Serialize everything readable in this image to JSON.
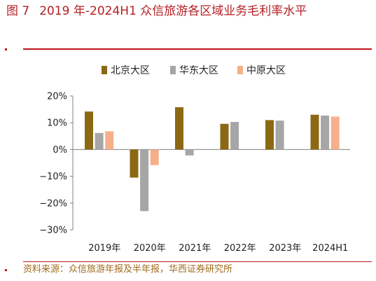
{
  "figure": {
    "number": "图 7",
    "title": "2019 年-2024H1 众信旅游各区域业务毛利率水平"
  },
  "source": "资料来源：众信旅游年报及半年报，华西证券研究所",
  "chart_data": {
    "type": "bar",
    "categories": [
      "2019年",
      "2020年",
      "2021年",
      "2022年",
      "2023年",
      "2024H1"
    ],
    "series": [
      {
        "name": "北京大区",
        "color": "#8b6914",
        "values": [
          14.2,
          -10.5,
          15.8,
          9.6,
          11.0,
          13.0
        ]
      },
      {
        "name": "华东大区",
        "color": "#a6a6a6",
        "values": [
          6.2,
          -23.0,
          -2.2,
          10.3,
          10.8,
          12.7
        ]
      },
      {
        "name": "中原大区",
        "color": "#f5b08a",
        "values": [
          6.8,
          -5.8,
          null,
          null,
          null,
          12.3
        ]
      }
    ],
    "ylim": [
      -30,
      20
    ],
    "yticks": [
      20,
      10,
      0,
      -10,
      -20,
      -30
    ],
    "ytick_labels": [
      "20%",
      "10%",
      "0%",
      "−10%",
      "−20%",
      "−30%"
    ],
    "legend_position": "top",
    "grid": false
  }
}
